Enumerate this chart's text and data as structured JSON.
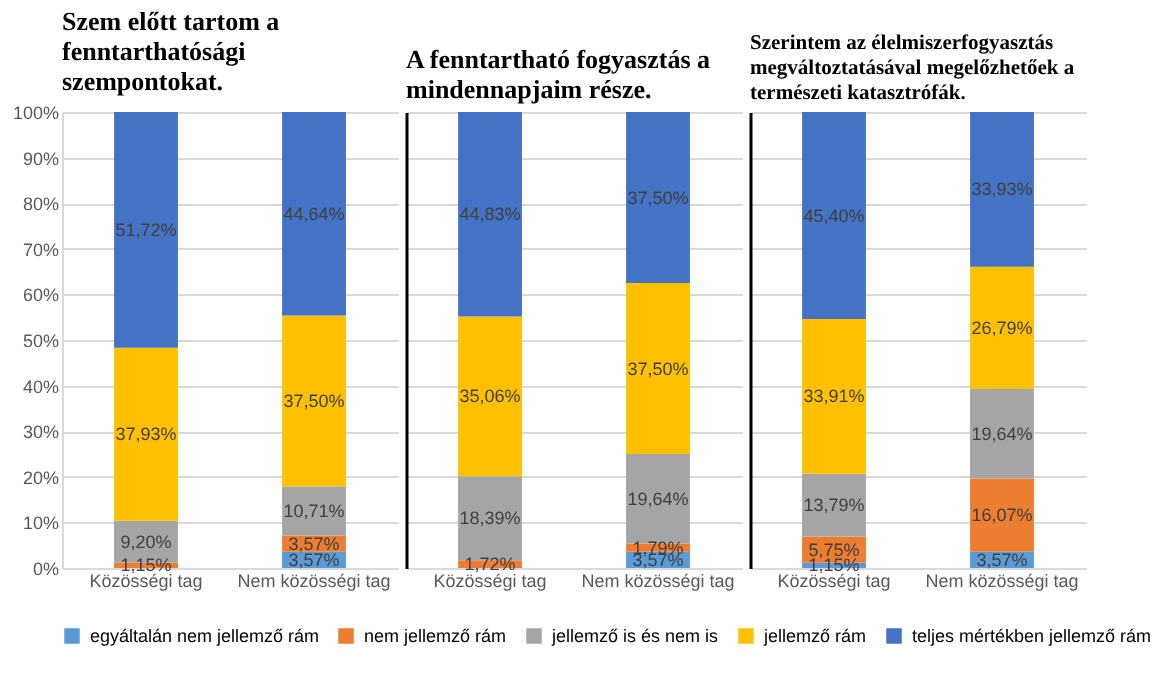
{
  "chart_data": [
    {
      "type": "bar",
      "stacked": true,
      "title": "Szem előtt tartom a fenntarthatósági szempontokat.",
      "categories": [
        "Közösségi tag",
        "Nem közösségi tag"
      ],
      "ylim": [
        0,
        100
      ],
      "yticks": [
        {
          "value": 0,
          "label": "0%"
        },
        {
          "value": 10,
          "label": "10%"
        },
        {
          "value": 20,
          "label": "20%"
        },
        {
          "value": 30,
          "label": "30%"
        },
        {
          "value": 40,
          "label": "40%"
        },
        {
          "value": 50,
          "label": "50%"
        },
        {
          "value": 60,
          "label": "60%"
        },
        {
          "value": 70,
          "label": "70%"
        },
        {
          "value": 80,
          "label": "80%"
        },
        {
          "value": 90,
          "label": "90%"
        },
        {
          "value": 100,
          "label": "100%"
        }
      ],
      "grid": "y",
      "legend": "bottom",
      "series": [
        {
          "name": "egyáltalán nem jellemző rám",
          "color": "#5b9bd5",
          "values": [
            0,
            3.57
          ],
          "value_labels": [
            null,
            "3,57%"
          ]
        },
        {
          "name": "nem jellemző rám",
          "color": "#ed7d31",
          "values": [
            1.15,
            3.57
          ],
          "value_labels": [
            "1,15%",
            "3,57%"
          ]
        },
        {
          "name": "jellemző is és nem is",
          "color": "#a5a5a5",
          "values": [
            9.2,
            10.71
          ],
          "value_labels": [
            "9,20%",
            "10,71%"
          ]
        },
        {
          "name": "jellemző rám",
          "color": "#ffc000",
          "values": [
            37.93,
            37.5
          ],
          "value_labels": [
            "37,93%",
            "37,50%"
          ]
        },
        {
          "name": "teljes mértékben jellemző rám",
          "color": "#4472c4",
          "values": [
            51.72,
            44.64
          ],
          "value_labels": [
            "51,72%",
            "44,64%"
          ]
        }
      ]
    },
    {
      "type": "bar",
      "stacked": true,
      "title": "A fenntartható fogyasztás a mindennapjaim része.",
      "categories": [
        "Közösségi tag",
        "Nem közösségi tag"
      ],
      "ylim": [
        0,
        100
      ],
      "yticks": [
        {
          "value": 0,
          "label": null
        },
        {
          "value": 10,
          "label": null
        },
        {
          "value": 20,
          "label": null
        },
        {
          "value": 30,
          "label": null
        },
        {
          "value": 40,
          "label": null
        },
        {
          "value": 50,
          "label": null
        },
        {
          "value": 60,
          "label": null
        },
        {
          "value": 70,
          "label": null
        },
        {
          "value": 80,
          "label": null
        },
        {
          "value": 90,
          "label": null
        },
        {
          "value": 100,
          "label": null
        }
      ],
      "grid": "y",
      "tick_labels": "x",
      "series": [
        {
          "name": "egyáltalán nem jellemző rám",
          "color": "#5b9bd5",
          "values": [
            0,
            3.57
          ],
          "value_labels": [
            null,
            "3,57%"
          ]
        },
        {
          "name": "nem jellemző rám",
          "color": "#ed7d31",
          "values": [
            1.72,
            1.79
          ],
          "value_labels": [
            "1,72%",
            "1,79%"
          ]
        },
        {
          "name": "jellemző is és nem is",
          "color": "#a5a5a5",
          "values": [
            18.39,
            19.64
          ],
          "value_labels": [
            "18,39%",
            "19,64%"
          ]
        },
        {
          "name": "jellemző rám",
          "color": "#ffc000",
          "values": [
            35.06,
            37.5
          ],
          "value_labels": [
            "35,06%",
            "37,50%"
          ]
        },
        {
          "name": "teljes mértékben jellemző rám",
          "color": "#4472c4",
          "values": [
            44.83,
            37.5
          ],
          "value_labels": [
            "44,83%",
            "37,50%"
          ]
        }
      ]
    },
    {
      "type": "bar",
      "stacked": true,
      "title": "Szerintem az élelmiszerfogyasztás megváltoztatásával megelőzhetőek a természeti katasztrófák.",
      "categories": [
        "Közösségi tag",
        "Nem közösségi tag"
      ],
      "ylim": [
        0,
        100
      ],
      "yticks": [
        {
          "value": 0,
          "label": null
        },
        {
          "value": 10,
          "label": null
        },
        {
          "value": 20,
          "label": null
        },
        {
          "value": 30,
          "label": null
        },
        {
          "value": 40,
          "label": null
        },
        {
          "value": 50,
          "label": null
        },
        {
          "value": 60,
          "label": null
        },
        {
          "value": 70,
          "label": null
        },
        {
          "value": 80,
          "label": null
        },
        {
          "value": 90,
          "label": null
        },
        {
          "value": 100,
          "label": null
        }
      ],
      "grid": "y",
      "tick_labels": "x",
      "series": [
        {
          "name": "egyáltalán nem jellemző rám",
          "color": "#5b9bd5",
          "values": [
            1.15,
            3.57
          ],
          "value_labels": [
            "1,15%",
            "3,57%"
          ]
        },
        {
          "name": "nem jellemző rám",
          "color": "#ed7d31",
          "values": [
            5.75,
            16.07
          ],
          "value_labels": [
            "5,75%",
            "16,07%"
          ]
        },
        {
          "name": "jellemző is és nem is",
          "color": "#a5a5a5",
          "values": [
            13.79,
            19.64
          ],
          "value_labels": [
            "13,79%",
            "19,64%"
          ]
        },
        {
          "name": "jellemző rám",
          "color": "#ffc000",
          "values": [
            33.91,
            26.79
          ],
          "value_labels": [
            "33,91%",
            "26,79%"
          ]
        },
        {
          "name": "teljes mértékben jellemző rám",
          "color": "#4472c4",
          "values": [
            45.4,
            33.93
          ],
          "value_labels": [
            "45,40%",
            "33,93%"
          ]
        }
      ]
    }
  ]
}
